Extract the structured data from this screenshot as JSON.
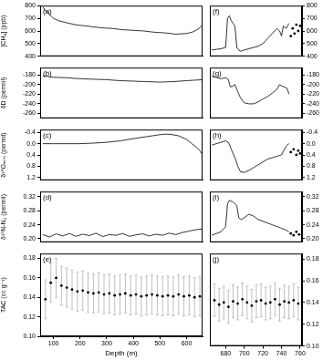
{
  "chart_data": [
    {
      "type": "line",
      "annotation": "(a)",
      "ylabel": "[CH₄] (ppb)",
      "grid": false,
      "xlim": [
        50,
        660
      ],
      "ylim": [
        400,
        800
      ],
      "yticks": [
        400,
        500,
        600,
        700,
        800
      ],
      "series": [
        {
          "color": "#000000",
          "x": [
            60,
            70,
            80,
            90,
            100,
            120,
            140,
            160,
            180,
            200,
            240,
            280,
            320,
            360,
            400,
            440,
            480,
            520,
            560,
            600,
            620,
            640,
            650,
            660
          ],
          "values": [
            790,
            760,
            740,
            720,
            700,
            680,
            670,
            660,
            650,
            645,
            635,
            625,
            620,
            610,
            605,
            600,
            590,
            585,
            575,
            580,
            590,
            610,
            625,
            650
          ]
        }
      ]
    },
    {
      "type": "line",
      "annotation": "(b)",
      "ylabel": "δD (permil)",
      "grid": false,
      "xlim": [
        50,
        660
      ],
      "ylim": [
        -270,
        -165
      ],
      "yticks": [
        -260,
        -240,
        -220,
        -200,
        -180
      ],
      "series": [
        {
          "color": "#000000",
          "x": [
            60,
            100,
            150,
            200,
            250,
            300,
            350,
            400,
            450,
            500,
            550,
            600,
            630,
            660
          ],
          "values": [
            -182,
            -185,
            -186,
            -188,
            -189,
            -190,
            -192,
            -193,
            -194,
            -195,
            -194,
            -192,
            -191,
            -190
          ]
        }
      ]
    },
    {
      "type": "line",
      "annotation": "(c)",
      "ylabel": "δ¹⁸Oₐₜₘ (permil)",
      "grid": false,
      "xlim": [
        50,
        660
      ],
      "ylim": [
        1.3,
        -0.5
      ],
      "yticks": [
        -0.4,
        {
          "value": 0,
          "label": "0.0"
        },
        0.4,
        0.8,
        1.2
      ],
      "series": [
        {
          "color": "#000000",
          "x": [
            60,
            100,
            150,
            200,
            250,
            300,
            350,
            400,
            450,
            500,
            520,
            540,
            570,
            600,
            620,
            640,
            650,
            660
          ],
          "values": [
            0,
            0,
            0,
            0,
            -0.02,
            -0.05,
            -0.1,
            -0.18,
            -0.25,
            -0.32,
            -0.34,
            -0.33,
            -0.28,
            -0.15,
            0,
            0.15,
            0.25,
            0.4
          ]
        }
      ]
    },
    {
      "type": "line",
      "annotation": "(d)",
      "ylabel": "δ¹⁵N-N₂ (permil)",
      "grid": false,
      "xlim": [
        50,
        660
      ],
      "ylim": [
        0.19,
        0.335
      ],
      "yticks": [
        {
          "value": 0.2,
          "label": "0.20"
        },
        0.24,
        0.28,
        0.32
      ],
      "series": [
        {
          "color": "#000000",
          "x": [
            60,
            85,
            110,
            135,
            160,
            185,
            210,
            235,
            260,
            285,
            310,
            335,
            360,
            385,
            410,
            435,
            460,
            485,
            510,
            535,
            560,
            585,
            610,
            635,
            660
          ],
          "values": [
            0.212,
            0.205,
            0.214,
            0.208,
            0.215,
            0.207,
            0.213,
            0.209,
            0.216,
            0.206,
            0.212,
            0.21,
            0.215,
            0.207,
            0.211,
            0.214,
            0.208,
            0.213,
            0.21,
            0.216,
            0.212,
            0.218,
            0.222,
            0.226,
            0.228
          ]
        }
      ]
    },
    {
      "type": "scatter",
      "annotation": "(e)",
      "ylabel": "TAC (cc g⁻¹)",
      "xlabel": "Depth (m)",
      "grid": false,
      "xlim": [
        50,
        660
      ],
      "xticks": [
        100,
        200,
        300,
        400,
        500,
        600
      ],
      "ylim": [
        0.1,
        0.185
      ],
      "yticks": [
        {
          "value": 0.1,
          "label": "0.10"
        },
        0.12,
        0.14,
        0.16,
        0.18
      ],
      "series": [
        {
          "color": "#000000",
          "x": [
            70,
            90,
            110,
            130,
            150,
            170,
            190,
            210,
            230,
            250,
            270,
            290,
            310,
            330,
            350,
            370,
            390,
            410,
            430,
            450,
            470,
            490,
            510,
            530,
            550,
            570,
            590,
            610,
            630,
            650
          ],
          "values": [
            0.138,
            0.155,
            0.16,
            0.152,
            0.15,
            0.148,
            0.146,
            0.147,
            0.145,
            0.144,
            0.145,
            0.143,
            0.144,
            0.142,
            0.143,
            0.144,
            0.142,
            0.143,
            0.141,
            0.142,
            0.143,
            0.142,
            0.141,
            0.142,
            0.141,
            0.143,
            0.141,
            0.142,
            0.14,
            0.141
          ],
          "errors": [
            0.02,
            0.02,
            0.02,
            0.02,
            0.02,
            0.02,
            0.02,
            0.02,
            0.02,
            0.02,
            0.02,
            0.02,
            0.02,
            0.02,
            0.02,
            0.02,
            0.02,
            0.02,
            0.02,
            0.02,
            0.02,
            0.02,
            0.02,
            0.02,
            0.02,
            0.02,
            0.02,
            0.02,
            0.02,
            0.02
          ]
        }
      ]
    },
    {
      "type": "line",
      "annotation": "(f)",
      "grid": false,
      "xlim": [
        663,
        762
      ],
      "ylim": [
        400,
        800
      ],
      "yticks": [
        400,
        500,
        600,
        700,
        800
      ],
      "series": [
        {
          "color": "#000000",
          "x": [
            665,
            670,
            675,
            680,
            682,
            684,
            686,
            688,
            690,
            692,
            694,
            696,
            700,
            705,
            710,
            715,
            720,
            725,
            730,
            735,
            738,
            740,
            742,
            745,
            748
          ],
          "values": [
            450,
            455,
            460,
            470,
            700,
            720,
            680,
            660,
            640,
            470,
            450,
            440,
            450,
            460,
            470,
            480,
            500,
            540,
            580,
            620,
            600,
            560,
            640,
            620,
            660
          ]
        },
        {
          "type": "scatter",
          "color": "#000000",
          "x": [
            750,
            752,
            754,
            756,
            758,
            760
          ],
          "values": [
            560,
            620,
            580,
            650,
            600,
            640
          ]
        }
      ]
    },
    {
      "type": "line",
      "annotation": "(g)",
      "grid": false,
      "xlim": [
        663,
        762
      ],
      "ylim": [
        -270,
        -165
      ],
      "yticks": [
        -260,
        -240,
        -220,
        -200,
        -180
      ],
      "series": [
        {
          "color": "#000000",
          "x": [
            665,
            670,
            675,
            680,
            683,
            685,
            688,
            690,
            693,
            696,
            700,
            705,
            710,
            715,
            720,
            725,
            730,
            735,
            738,
            740,
            743,
            746,
            748
          ],
          "values": [
            -183,
            -185,
            -188,
            -186,
            -190,
            -205,
            -203,
            -200,
            -215,
            -228,
            -238,
            -240,
            -240,
            -236,
            -230,
            -225,
            -218,
            -210,
            -200,
            -203,
            -205,
            -208,
            -220
          ]
        }
      ]
    },
    {
      "type": "line",
      "annotation": "(h)",
      "grid": false,
      "xlim": [
        663,
        762
      ],
      "ylim": [
        1.3,
        -0.5
      ],
      "yticks": [
        -0.4,
        {
          "value": 0,
          "label": "0.0"
        },
        0.4,
        0.8,
        1.2
      ],
      "series": [
        {
          "color": "#000000",
          "x": [
            665,
            670,
            675,
            680,
            683,
            686,
            690,
            693,
            696,
            700,
            705,
            710,
            715,
            720,
            725,
            730,
            735,
            740,
            743,
            746,
            748
          ],
          "values": [
            0.05,
            0.0,
            -0.05,
            -0.1,
            -0.05,
            0.2,
            0.5,
            0.8,
            1.0,
            1.02,
            0.95,
            0.85,
            0.75,
            0.65,
            0.55,
            0.5,
            0.45,
            0.4,
            0.2,
            0.05,
            0.0
          ]
        },
        {
          "type": "scatter",
          "color": "#000000",
          "x": [
            750,
            753,
            756,
            758,
            760
          ],
          "values": [
            0.3,
            0.2,
            0.4,
            0.25,
            0.35
          ]
        }
      ]
    },
    {
      "type": "line",
      "annotation": "(i)",
      "grid": false,
      "xlim": [
        663,
        762
      ],
      "ylim": [
        0.19,
        0.335
      ],
      "yticks": [
        {
          "value": 0.2,
          "label": "0.20"
        },
        0.24,
        0.28,
        0.32
      ],
      "series": [
        {
          "color": "#000000",
          "x": [
            665,
            670,
            675,
            680,
            682,
            684,
            688,
            692,
            694,
            697,
            700,
            705,
            710,
            715,
            720,
            725,
            730,
            735,
            740,
            745,
            748
          ],
          "values": [
            0.21,
            0.215,
            0.22,
            0.235,
            0.3,
            0.31,
            0.305,
            0.295,
            0.26,
            0.255,
            0.26,
            0.27,
            0.265,
            0.255,
            0.25,
            0.245,
            0.24,
            0.235,
            0.23,
            0.225,
            0.22
          ]
        },
        {
          "type": "scatter",
          "color": "#000000",
          "x": [
            750,
            753,
            756,
            759
          ],
          "values": [
            0.215,
            0.21,
            0.22,
            0.212
          ]
        }
      ]
    },
    {
      "type": "scatter",
      "annotation": "(j)",
      "grid": false,
      "xlim": [
        663,
        762
      ],
      "xticks": [
        680,
        700,
        720,
        740,
        760
      ],
      "ylim": [
        0.1,
        0.185
      ],
      "yticks": [
        {
          "value": 0.1,
          "label": "0.10"
        },
        0.12,
        0.14,
        0.16,
        0.18
      ],
      "series": [
        {
          "color": "#000000",
          "x": [
            668,
            673,
            678,
            683,
            688,
            693,
            698,
            703,
            708,
            713,
            718,
            723,
            728,
            733,
            738,
            743,
            748,
            753,
            758
          ],
          "values": [
            0.142,
            0.138,
            0.14,
            0.136,
            0.141,
            0.139,
            0.143,
            0.14,
            0.137,
            0.141,
            0.142,
            0.139,
            0.14,
            0.143,
            0.138,
            0.141,
            0.14,
            0.142,
            0.139
          ],
          "errors": [
            0.015,
            0.015,
            0.015,
            0.015,
            0.015,
            0.015,
            0.015,
            0.015,
            0.015,
            0.015,
            0.015,
            0.015,
            0.015,
            0.015,
            0.015,
            0.015,
            0.015,
            0.015,
            0.015
          ]
        }
      ]
    }
  ]
}
